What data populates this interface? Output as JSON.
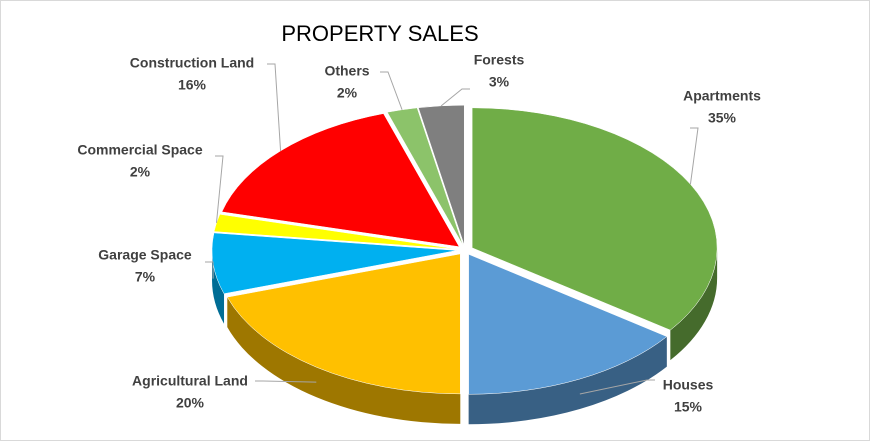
{
  "chart_data": {
    "type": "pie3d",
    "title": "PROPERTY SALES",
    "categories": [
      "Apartments",
      "Houses",
      "Agricultural Land",
      "Garage Space",
      "Commercial Space",
      "Construction Land",
      "Others",
      "Forests"
    ],
    "values": [
      35,
      15,
      20,
      7,
      2,
      16,
      2,
      3
    ],
    "value_labels": [
      "35%",
      "15%",
      "20%",
      "7%",
      "2%",
      "16%",
      "2%",
      "3%"
    ],
    "colors": [
      "#70ad47",
      "#5b9bd5",
      "#ffc000",
      "#00b0f0",
      "#ffff00",
      "#ff0000",
      "#8cc36a",
      "#7f7f7f"
    ]
  }
}
